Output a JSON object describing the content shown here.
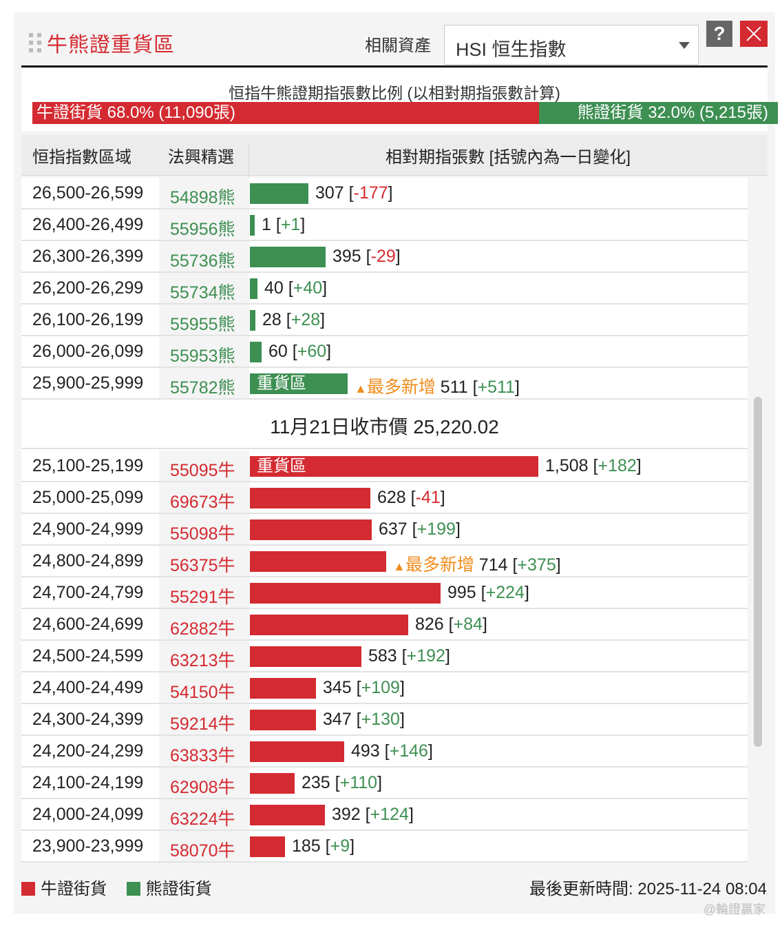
{
  "header": {
    "title": "牛熊證重貨區",
    "asset_label": "相關資產",
    "asset_value": "HSI 恒生指數",
    "help_label": "?"
  },
  "ratio": {
    "title": "恒指牛熊證期指張數比例 (以相對期指張數計算)",
    "bull_text": "牛證街貨 68.0% (11,090張)",
    "bear_text": "熊證街貨 32.0% (5,215張)",
    "bull_fraction": 0.68
  },
  "table": {
    "headers": {
      "range": "恒指指數區域",
      "code": "法興精選",
      "contracts": "相對期指張數 [括號內為一日變化]"
    },
    "rows": [
      {
        "range": "26,500-26,599",
        "code": "54898熊",
        "type": "bear",
        "value": 307,
        "value_text": "307",
        "change": "-177",
        "label": "",
        "note": ""
      },
      {
        "range": "26,400-26,499",
        "code": "55956熊",
        "type": "bear",
        "value": 1,
        "value_text": "1",
        "change": "+1",
        "label": "",
        "note": ""
      },
      {
        "range": "26,300-26,399",
        "code": "55736熊",
        "type": "bear",
        "value": 395,
        "value_text": "395",
        "change": "-29",
        "label": "",
        "note": ""
      },
      {
        "range": "26,200-26,299",
        "code": "55734熊",
        "type": "bear",
        "value": 40,
        "value_text": "40",
        "change": "+40",
        "label": "",
        "note": ""
      },
      {
        "range": "26,100-26,199",
        "code": "55955熊",
        "type": "bear",
        "value": 28,
        "value_text": "28",
        "change": "+28",
        "label": "",
        "note": ""
      },
      {
        "range": "26,000-26,099",
        "code": "55953熊",
        "type": "bear",
        "value": 60,
        "value_text": "60",
        "change": "+60",
        "label": "",
        "note": ""
      },
      {
        "range": "25,900-25,999",
        "code": "55782熊",
        "type": "bear",
        "value": 511,
        "value_text": "511",
        "change": "+511",
        "label": "重貨區",
        "note": "最多新增"
      },
      {
        "range": "25,100-25,199",
        "code": "55095牛",
        "type": "bull",
        "value": 1508,
        "value_text": "1,508",
        "change": "+182",
        "label": "重貨區",
        "note": ""
      },
      {
        "range": "25,000-25,099",
        "code": "69673牛",
        "type": "bull",
        "value": 628,
        "value_text": "628",
        "change": "-41",
        "label": "",
        "note": ""
      },
      {
        "range": "24,900-24,999",
        "code": "55098牛",
        "type": "bull",
        "value": 637,
        "value_text": "637",
        "change": "+199",
        "label": "",
        "note": ""
      },
      {
        "range": "24,800-24,899",
        "code": "56375牛",
        "type": "bull",
        "value": 714,
        "value_text": "714",
        "change": "+375",
        "label": "",
        "note": "最多新增"
      },
      {
        "range": "24,700-24,799",
        "code": "55291牛",
        "type": "bull",
        "value": 995,
        "value_text": "995",
        "change": "+224",
        "label": "",
        "note": ""
      },
      {
        "range": "24,600-24,699",
        "code": "62882牛",
        "type": "bull",
        "value": 826,
        "value_text": "826",
        "change": "+84",
        "label": "",
        "note": ""
      },
      {
        "range": "24,500-24,599",
        "code": "63213牛",
        "type": "bull",
        "value": 583,
        "value_text": "583",
        "change": "+192",
        "label": "",
        "note": ""
      },
      {
        "range": "24,400-24,499",
        "code": "54150牛",
        "type": "bull",
        "value": 345,
        "value_text": "345",
        "change": "+109",
        "label": "",
        "note": ""
      },
      {
        "range": "24,300-24,399",
        "code": "59214牛",
        "type": "bull",
        "value": 347,
        "value_text": "347",
        "change": "+130",
        "label": "",
        "note": ""
      },
      {
        "range": "24,200-24,299",
        "code": "63833牛",
        "type": "bull",
        "value": 493,
        "value_text": "493",
        "change": "+146",
        "label": "",
        "note": ""
      },
      {
        "range": "24,100-24,199",
        "code": "62908牛",
        "type": "bull",
        "value": 235,
        "value_text": "235",
        "change": "+110",
        "label": "",
        "note": ""
      },
      {
        "range": "24,000-24,099",
        "code": "63224牛",
        "type": "bull",
        "value": 392,
        "value_text": "392",
        "change": "+124",
        "label": "",
        "note": ""
      },
      {
        "range": "23,900-23,999",
        "code": "58070牛",
        "type": "bull",
        "value": 185,
        "value_text": "185",
        "change": "+9",
        "label": "",
        "note": ""
      }
    ],
    "close_price_text": "11月21日收市價 25,220.02"
  },
  "legend": {
    "bull": "牛證街貨",
    "bear": "熊證街貨"
  },
  "footer": {
    "updated": "最後更新時間: 2025-11-24 08:04",
    "watermark": "@輪證贏家"
  },
  "colors": {
    "bull": "#d42a31",
    "bear": "#3d8f52",
    "note": "#f08c1c"
  }
}
